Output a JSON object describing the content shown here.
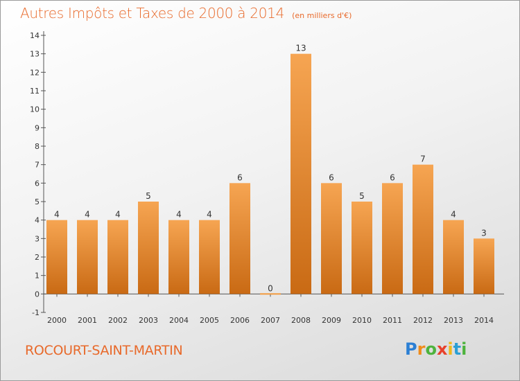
{
  "chart_data": {
    "type": "bar",
    "title": "Autres Impôts et Taxes de 2000 à 2014",
    "subtitle": "(en milliers d'€)",
    "categories": [
      "2000",
      "2001",
      "2002",
      "2003",
      "2004",
      "2005",
      "2006",
      "2007",
      "2008",
      "2009",
      "2010",
      "2011",
      "2012",
      "2013",
      "2014"
    ],
    "values": [
      4,
      4,
      4,
      5,
      4,
      4,
      6,
      0,
      13,
      6,
      5,
      6,
      7,
      4,
      3
    ],
    "ylim": [
      -1,
      14
    ],
    "yticks": [
      "-1",
      "0",
      "1",
      "2",
      "3",
      "4",
      "5",
      "6",
      "7",
      "8",
      "9",
      "10",
      "11",
      "12",
      "13",
      "14"
    ],
    "grid": false,
    "bar_color": "#f29a3d"
  },
  "footer": {
    "place": "ROCOURT-SAINT-MARTIN",
    "logo_letters": [
      "P",
      "r",
      "o",
      "x",
      "i",
      "t",
      "i"
    ],
    "logo_colors": [
      "#2b7fd4",
      "#f08c1a",
      "#4db33d",
      "#e8412c",
      "#f0b81a",
      "#2b9fd4",
      "#4db33d"
    ]
  }
}
